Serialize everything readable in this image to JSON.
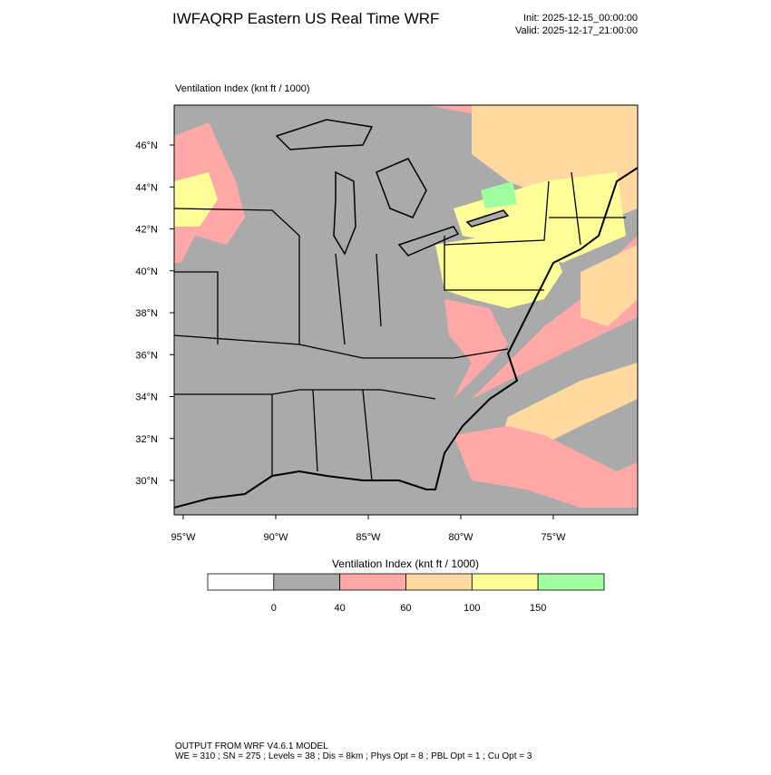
{
  "header": {
    "title": "IWFAQRP Eastern US Real Time WRF",
    "init": "Init: 2025-12-15_00:00:00",
    "valid": "Valid: 2025-12-17_21:00:00"
  },
  "panel": {
    "label": "Ventilation Index   (knt ft / 1000)"
  },
  "map": {
    "lat_labels": [
      "46°N",
      "44°N",
      "42°N",
      "40°N",
      "38°N",
      "36°N",
      "34°N",
      "32°N",
      "30°N"
    ],
    "lon_labels": [
      "95°W",
      "90°W",
      "85°W",
      "80°W",
      "75°W"
    ]
  },
  "colorbar": {
    "title": "Ventilation Index  (knt ft / 1000)",
    "levels": [
      0,
      40,
      60,
      100,
      150
    ],
    "colors": [
      "#ffffff",
      "#aaaaaa",
      "#ffa8a8",
      "#ffd9a0",
      "#ffff99",
      "#a0ffa0"
    ]
  },
  "footer": {
    "lines": [
      "OUTPUT FROM WRF V4.6.1 MODEL",
      "WE = 310 ; SN = 275 ; Levels = 38 ; Dis = 8km ; Phys Opt = 8 ; PBL Opt = 1 ; Cu Opt = 3"
    ]
  }
}
